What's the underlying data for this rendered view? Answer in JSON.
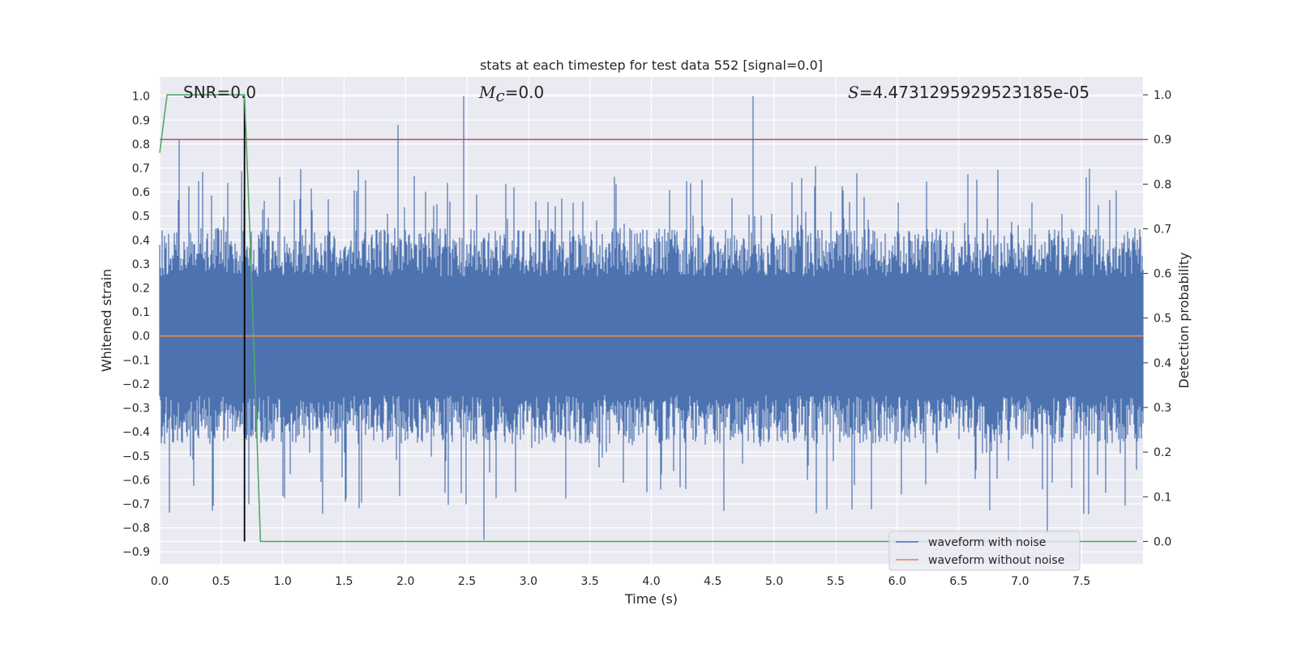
{
  "chart_data": {
    "type": "line",
    "title": "stats at each timestep for test data 552 [signal=0.0]",
    "xlabel": "Time (s)",
    "ylabel": "Whitened strain",
    "y2label": "Detection probability",
    "xlim": [
      0.0,
      8.0
    ],
    "ylim": [
      -0.95,
      1.08
    ],
    "y2lim": [
      -0.05,
      1.04
    ],
    "x_ticks": [
      "0.0",
      "0.5",
      "1.0",
      "1.5",
      "2.0",
      "2.5",
      "3.0",
      "3.5",
      "4.0",
      "4.5",
      "5.0",
      "5.5",
      "6.0",
      "6.5",
      "7.0",
      "7.5"
    ],
    "y_ticks": [
      "1.0",
      "0.9",
      "0.8",
      "0.7",
      "0.6",
      "0.5",
      "0.4",
      "0.3",
      "0.2",
      "0.1",
      "0.0",
      "−0.1",
      "−0.2",
      "−0.3",
      "−0.4",
      "−0.5",
      "−0.6",
      "−0.7",
      "−0.8",
      "−0.9"
    ],
    "y2_ticks": [
      "1.0",
      "0.9",
      "0.8",
      "0.7",
      "0.6",
      "0.5",
      "0.4",
      "0.3",
      "0.2",
      "0.1",
      "0.0"
    ],
    "grid": true,
    "legend_position": "bottom-right",
    "annotations": {
      "snr": "SNR=0.0",
      "mc_symbol": "M",
      "mc_sub": "c",
      "mc_value": "=0.0",
      "s_symbol": "S",
      "s_value": "=4.4731295929523185e-05"
    },
    "series": [
      {
        "name": "waveform with noise",
        "color": "#4c72b0",
        "envelope": {
          "upper_typical": 0.45,
          "lower_typical": -0.45,
          "peaks": [
            {
              "x": 0.16,
              "y": 0.82
            },
            {
              "x": 1.94,
              "y": 0.88
            },
            {
              "x": 2.47,
              "y": 1.0
            },
            {
              "x": 4.83,
              "y": 1.0
            },
            {
              "x": 2.64,
              "y": -0.85
            },
            {
              "x": 7.22,
              "y": -0.82
            }
          ]
        }
      },
      {
        "name": "waveform without noise",
        "color": "#dd8452",
        "x": [
          0.0,
          8.0
        ],
        "y": [
          0.0,
          0.0
        ]
      },
      {
        "name": "",
        "color": "#55a868",
        "axis": "right",
        "x": [
          0.0,
          0.06,
          0.12,
          0.69,
          0.74,
          0.82,
          7.95
        ],
        "y": [
          0.87,
          1.0,
          1.0,
          1.0,
          0.65,
          0.0,
          0.0
        ]
      }
    ],
    "threshold": {
      "axis": "right",
      "y": 0.9,
      "color": "#c44e52"
    },
    "marker_x": 0.69
  }
}
